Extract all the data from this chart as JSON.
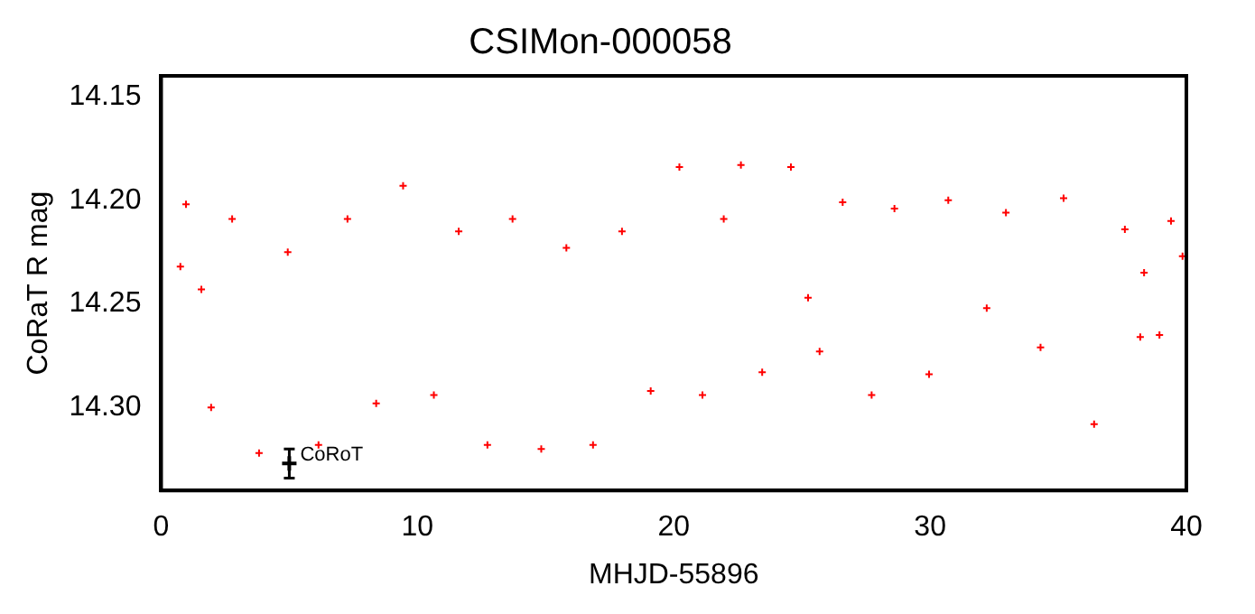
{
  "chart_data": {
    "type": "scatter",
    "title": "CSIMon-000058",
    "xlabel": "MHJD-55896",
    "ylabel": "CoRaT R mag",
    "xlim": [
      0,
      40
    ],
    "xticks": [
      0,
      10,
      20,
      30,
      40
    ],
    "ylim": [
      14.34,
      14.14
    ],
    "yticks": [
      {
        "value": 14.15,
        "label": "14.15"
      },
      {
        "value": 14.2,
        "label": "14.20"
      },
      {
        "value": 14.25,
        "label": "14.25"
      },
      {
        "value": 14.3,
        "label": "14.30"
      }
    ],
    "grid": false,
    "legend": false,
    "marker": "cross",
    "series": [
      {
        "color": "#ff0000",
        "x": [
          0.75,
          0.97,
          1.57,
          1.95,
          2.77,
          3.82,
          4.94,
          6.14,
          7.27,
          8.39,
          9.44,
          10.64,
          11.61,
          12.73,
          13.71,
          14.83,
          15.81,
          16.85,
          17.98,
          19.1,
          20.22,
          21.12,
          21.95,
          22.62,
          23.45,
          24.57,
          25.24,
          25.69,
          26.59,
          27.72,
          28.61,
          29.96,
          30.71,
          32.21,
          32.96,
          34.31,
          35.21,
          36.4,
          37.6,
          38.2,
          38.35,
          38.95,
          39.4,
          39.85
        ],
        "values": [
          14.232,
          14.202,
          14.243,
          14.3,
          14.209,
          14.322,
          14.225,
          14.318,
          14.209,
          14.298,
          14.193,
          14.294,
          14.215,
          14.318,
          14.209,
          14.32,
          14.223,
          14.318,
          14.215,
          14.292,
          14.184,
          14.294,
          14.209,
          14.183,
          14.283,
          14.184,
          14.247,
          14.273,
          14.201,
          14.294,
          14.204,
          14.284,
          14.2,
          14.252,
          14.206,
          14.271,
          14.199,
          14.308,
          14.214,
          14.266,
          14.235,
          14.265,
          14.21,
          14.227
        ]
      },
      {
        "color": "#000000",
        "x": [
          5.0
        ],
        "values": [
          14.327
        ],
        "errors": [
          0.007
        ]
      }
    ],
    "annotations": [
      {
        "text": "CoRoT",
        "x": 5.0,
        "y": 14.327
      }
    ]
  }
}
